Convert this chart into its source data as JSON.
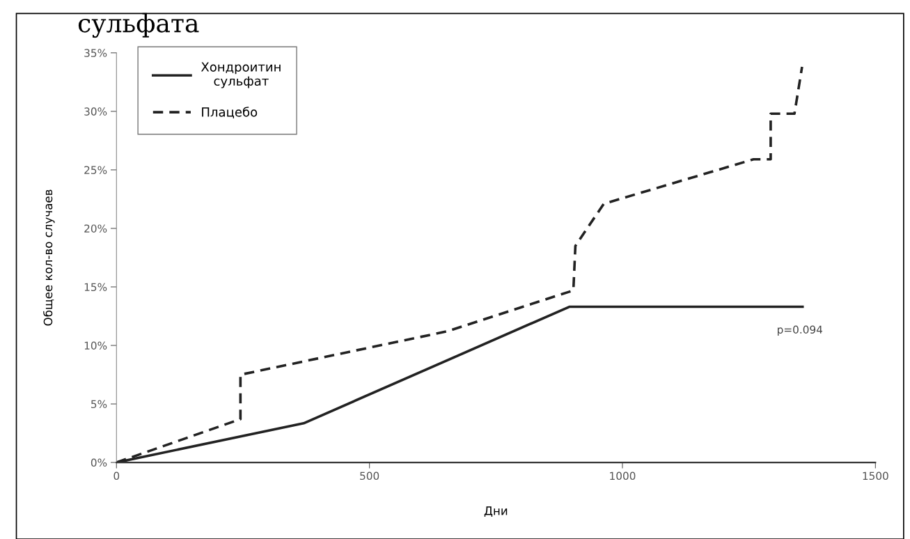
{
  "chart_data": {
    "type": "line",
    "title": "сульфата",
    "xlabel": "Дни",
    "ylabel": "Общее кол-во случаев",
    "series": [
      {
        "name": "Хондроитин\nсульфат",
        "color": "#222222",
        "line_style": "solid",
        "x": [
          0,
          370,
          895,
          1356
        ],
        "values": [
          0,
          3.35,
          13.3,
          13.3
        ]
      },
      {
        "name": "Плацебо",
        "color": "#222222",
        "line_style": "dashed",
        "x": [
          0,
          245,
          245,
          653,
          903,
          907,
          963,
          1259,
          1293,
          1293,
          1340,
          1355
        ],
        "values": [
          0,
          3.7,
          7.5,
          11.2,
          14.7,
          18.5,
          22.1,
          25.9,
          25.9,
          29.8,
          29.8,
          33.8
        ]
      }
    ],
    "xlim": [
      0,
      1500
    ],
    "xticks": [
      0,
      500,
      1000,
      1500
    ],
    "ylim": [
      0,
      35
    ],
    "yticks": [
      {
        "value": 0,
        "label": "0%"
      },
      {
        "value": 5,
        "label": "5%"
      },
      {
        "value": 10,
        "label": "10%"
      },
      {
        "value": 15,
        "label": "15%"
      },
      {
        "value": 20,
        "label": "20%"
      },
      {
        "value": 25,
        "label": "25%"
      },
      {
        "value": 30,
        "label": "30%"
      },
      {
        "value": 35,
        "label": "35%"
      }
    ],
    "annotations": [
      "p=0.094"
    ],
    "grid": false,
    "legend": "top left",
    "marker": "none"
  }
}
